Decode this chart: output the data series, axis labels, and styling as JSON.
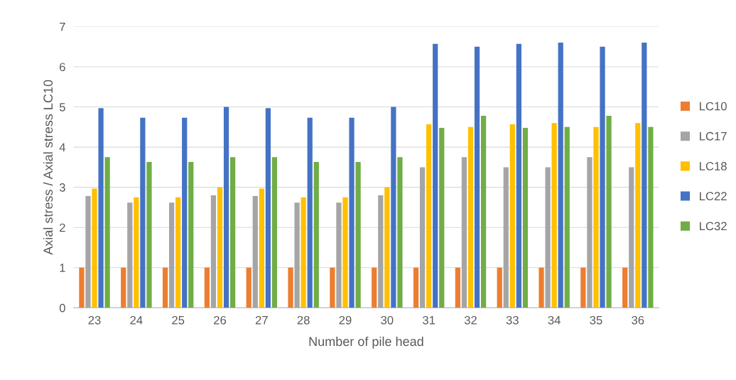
{
  "chart_data": {
    "type": "bar",
    "xlabel": "Number of pile head",
    "ylabel": "Axial stress / Axial stress LC10",
    "categories": [
      "23",
      "24",
      "25",
      "26",
      "27",
      "28",
      "29",
      "30",
      "31",
      "32",
      "33",
      "34",
      "35",
      "36"
    ],
    "series": [
      {
        "name": "LC10",
        "color": "#ed7d31",
        "values": [
          1,
          1,
          1,
          1,
          1,
          1,
          1,
          1,
          1,
          1,
          1,
          1,
          1,
          1
        ]
      },
      {
        "name": "LC17",
        "color": "#a5a5a5",
        "values": [
          2.78,
          2.62,
          2.62,
          2.8,
          2.78,
          2.62,
          2.62,
          2.8,
          3.5,
          3.75,
          3.5,
          3.5,
          3.75,
          3.5
        ]
      },
      {
        "name": "LC18",
        "color": "#ffc000",
        "values": [
          2.97,
          2.75,
          2.75,
          3.0,
          2.97,
          2.75,
          2.75,
          3.0,
          4.57,
          4.5,
          4.57,
          4.6,
          4.5,
          4.6
        ]
      },
      {
        "name": "LC22",
        "color": "#4472c4",
        "values": [
          4.97,
          4.73,
          4.73,
          5.0,
          4.97,
          4.73,
          4.73,
          5.0,
          6.57,
          6.5,
          6.57,
          6.6,
          6.5,
          6.6
        ]
      },
      {
        "name": "LC32",
        "color": "#70ad47",
        "values": [
          3.75,
          3.63,
          3.63,
          3.75,
          3.75,
          3.63,
          3.63,
          3.75,
          4.48,
          4.78,
          4.48,
          4.5,
          4.78,
          4.5
        ]
      }
    ],
    "ylim": [
      0,
      7
    ],
    "yticks": [
      0,
      1,
      2,
      3,
      4,
      5,
      6,
      7
    ],
    "grid": "y",
    "legend": "right"
  }
}
